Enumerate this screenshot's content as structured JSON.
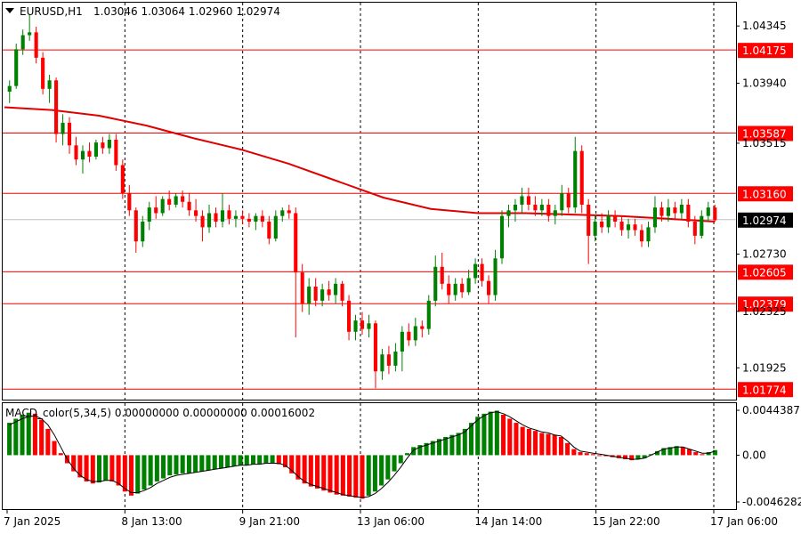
{
  "header": {
    "symbol": "EURUSD,H1",
    "ohlc": "1.03046 1.03064 1.02960 1.02974",
    "indicator": "MACD_color(5,34,5) 0.00000000 0.00000000 0.00016002"
  },
  "colors": {
    "bull": "#008000",
    "bear": "#ff0000",
    "ma": "#e00000",
    "level": "#ff0000",
    "price_tag": "#000000",
    "grid": "#000000",
    "signal": "#000000"
  },
  "chart_data": {
    "type": "candlestick",
    "price_axis": {
      "ticks": [
        "1.04345",
        "1.03940",
        "1.03515",
        "1.02730",
        "1.02325",
        "1.01925"
      ],
      "ylim": [
        1.017,
        1.0451
      ]
    },
    "level_lines": [
      "1.04175",
      "1.03587",
      "1.03160",
      "1.02605",
      "1.02379",
      "1.01774"
    ],
    "current_price": "1.02974",
    "x_labels": [
      "7 Jan 2025",
      "8 Jan 13:00",
      "9 Jan 21:00",
      "13 Jan 06:00",
      "14 Jan 14:00",
      "15 Jan 22:00",
      "17 Jan 06:00"
    ],
    "ma_points": [
      1.0377,
      1.0375,
      1.0371,
      1.0364,
      1.0355,
      1.0347,
      1.0337,
      1.0325,
      1.0313,
      1.0305,
      1.0302,
      1.0302,
      1.0301,
      1.03,
      1.0298,
      1.0296
    ],
    "candles": [
      {
        "o": 1.0388,
        "h": 1.0396,
        "l": 1.038,
        "c": 1.0392
      },
      {
        "o": 1.0392,
        "h": 1.0422,
        "l": 1.039,
        "c": 1.0418
      },
      {
        "o": 1.0418,
        "h": 1.0432,
        "l": 1.0414,
        "c": 1.0428
      },
      {
        "o": 1.0428,
        "h": 1.0443,
        "l": 1.0424,
        "c": 1.043
      },
      {
        "o": 1.043,
        "h": 1.0434,
        "l": 1.0408,
        "c": 1.0412
      },
      {
        "o": 1.0412,
        "h": 1.0416,
        "l": 1.0386,
        "c": 1.039
      },
      {
        "o": 1.039,
        "h": 1.04,
        "l": 1.038,
        "c": 1.0396
      },
      {
        "o": 1.0396,
        "h": 1.0398,
        "l": 1.0352,
        "c": 1.0358
      },
      {
        "o": 1.0358,
        "h": 1.0372,
        "l": 1.035,
        "c": 1.0366
      },
      {
        "o": 1.0366,
        "h": 1.037,
        "l": 1.0344,
        "c": 1.035
      },
      {
        "o": 1.035,
        "h": 1.0356,
        "l": 1.0336,
        "c": 1.034
      },
      {
        "o": 1.034,
        "h": 1.035,
        "l": 1.033,
        "c": 1.0346
      },
      {
        "o": 1.0346,
        "h": 1.0352,
        "l": 1.0338,
        "c": 1.0342
      },
      {
        "o": 1.0342,
        "h": 1.0354,
        "l": 1.034,
        "c": 1.0352
      },
      {
        "o": 1.0352,
        "h": 1.0356,
        "l": 1.0344,
        "c": 1.0348
      },
      {
        "o": 1.0348,
        "h": 1.0358,
        "l": 1.0344,
        "c": 1.0354
      },
      {
        "o": 1.0354,
        "h": 1.0358,
        "l": 1.0332,
        "c": 1.0336
      },
      {
        "o": 1.0336,
        "h": 1.034,
        "l": 1.0312,
        "c": 1.0316
      },
      {
        "o": 1.0316,
        "h": 1.0322,
        "l": 1.03,
        "c": 1.0304
      },
      {
        "o": 1.0304,
        "h": 1.0306,
        "l": 1.0274,
        "c": 1.0282
      },
      {
        "o": 1.0282,
        "h": 1.03,
        "l": 1.0278,
        "c": 1.0296
      },
      {
        "o": 1.0296,
        "h": 1.031,
        "l": 1.029,
        "c": 1.0306
      },
      {
        "o": 1.0306,
        "h": 1.0314,
        "l": 1.0298,
        "c": 1.0302
      },
      {
        "o": 1.0302,
        "h": 1.0314,
        "l": 1.03,
        "c": 1.0312
      },
      {
        "o": 1.0312,
        "h": 1.0318,
        "l": 1.0304,
        "c": 1.0308
      },
      {
        "o": 1.0308,
        "h": 1.0316,
        "l": 1.0306,
        "c": 1.0314
      },
      {
        "o": 1.0314,
        "h": 1.0318,
        "l": 1.0306,
        "c": 1.031
      },
      {
        "o": 1.031,
        "h": 1.0316,
        "l": 1.03,
        "c": 1.0304
      },
      {
        "o": 1.0304,
        "h": 1.0312,
        "l": 1.0296,
        "c": 1.03
      },
      {
        "o": 1.03,
        "h": 1.0304,
        "l": 1.0282,
        "c": 1.0292
      },
      {
        "o": 1.0292,
        "h": 1.0308,
        "l": 1.0288,
        "c": 1.0302
      },
      {
        "o": 1.0302,
        "h": 1.0306,
        "l": 1.0292,
        "c": 1.0296
      },
      {
        "o": 1.0296,
        "h": 1.0316,
        "l": 1.0292,
        "c": 1.0304
      },
      {
        "o": 1.0304,
        "h": 1.0308,
        "l": 1.0294,
        "c": 1.0298
      },
      {
        "o": 1.0298,
        "h": 1.0304,
        "l": 1.0292,
        "c": 1.03
      },
      {
        "o": 1.03,
        "h": 1.0304,
        "l": 1.0294,
        "c": 1.0298
      },
      {
        "o": 1.0298,
        "h": 1.0302,
        "l": 1.0292,
        "c": 1.0296
      },
      {
        "o": 1.0296,
        "h": 1.0302,
        "l": 1.029,
        "c": 1.03
      },
      {
        "o": 1.03,
        "h": 1.0304,
        "l": 1.0292,
        "c": 1.0296
      },
      {
        "o": 1.0296,
        "h": 1.03,
        "l": 1.028,
        "c": 1.0284
      },
      {
        "o": 1.0284,
        "h": 1.0304,
        "l": 1.0282,
        "c": 1.03
      },
      {
        "o": 1.03,
        "h": 1.0306,
        "l": 1.0296,
        "c": 1.0304
      },
      {
        "o": 1.0304,
        "h": 1.0308,
        "l": 1.0298,
        "c": 1.0302
      },
      {
        "o": 1.0302,
        "h": 1.0306,
        "l": 1.0214,
        "c": 1.026
      },
      {
        "o": 1.026,
        "h": 1.0266,
        "l": 1.0232,
        "c": 1.0238
      },
      {
        "o": 1.0238,
        "h": 1.0256,
        "l": 1.023,
        "c": 1.025
      },
      {
        "o": 1.025,
        "h": 1.0256,
        "l": 1.0236,
        "c": 1.024
      },
      {
        "o": 1.024,
        "h": 1.0252,
        "l": 1.0236,
        "c": 1.0248
      },
      {
        "o": 1.0248,
        "h": 1.0254,
        "l": 1.024,
        "c": 1.0244
      },
      {
        "o": 1.0244,
        "h": 1.0256,
        "l": 1.0238,
        "c": 1.0252
      },
      {
        "o": 1.0252,
        "h": 1.0254,
        "l": 1.0236,
        "c": 1.024
      },
      {
        "o": 1.024,
        "h": 1.0244,
        "l": 1.0212,
        "c": 1.0218
      },
      {
        "o": 1.0218,
        "h": 1.023,
        "l": 1.0212,
        "c": 1.0226
      },
      {
        "o": 1.0226,
        "h": 1.0232,
        "l": 1.0216,
        "c": 1.022
      },
      {
        "o": 1.022,
        "h": 1.023,
        "l": 1.0214,
        "c": 1.0224
      },
      {
        "o": 1.0224,
        "h": 1.0226,
        "l": 1.0178,
        "c": 1.019
      },
      {
        "o": 1.019,
        "h": 1.0206,
        "l": 1.0184,
        "c": 1.0202
      },
      {
        "o": 1.0202,
        "h": 1.0208,
        "l": 1.0188,
        "c": 1.0194
      },
      {
        "o": 1.0194,
        "h": 1.021,
        "l": 1.019,
        "c": 1.0204
      },
      {
        "o": 1.0204,
        "h": 1.0222,
        "l": 1.019,
        "c": 1.0218
      },
      {
        "o": 1.0218,
        "h": 1.0224,
        "l": 1.0208,
        "c": 1.0212
      },
      {
        "o": 1.0212,
        "h": 1.0228,
        "l": 1.0208,
        "c": 1.0222
      },
      {
        "o": 1.0222,
        "h": 1.0226,
        "l": 1.0214,
        "c": 1.022
      },
      {
        "o": 1.022,
        "h": 1.0244,
        "l": 1.0216,
        "c": 1.024
      },
      {
        "o": 1.024,
        "h": 1.0272,
        "l": 1.0236,
        "c": 1.0264
      },
      {
        "o": 1.0264,
        "h": 1.0274,
        "l": 1.0248,
        "c": 1.0252
      },
      {
        "o": 1.0252,
        "h": 1.0258,
        "l": 1.0238,
        "c": 1.0244
      },
      {
        "o": 1.0244,
        "h": 1.0256,
        "l": 1.024,
        "c": 1.0252
      },
      {
        "o": 1.0252,
        "h": 1.0256,
        "l": 1.0242,
        "c": 1.0246
      },
      {
        "o": 1.0246,
        "h": 1.0262,
        "l": 1.0244,
        "c": 1.0256
      },
      {
        "o": 1.0256,
        "h": 1.027,
        "l": 1.0252,
        "c": 1.0266
      },
      {
        "o": 1.0266,
        "h": 1.027,
        "l": 1.025,
        "c": 1.0254
      },
      {
        "o": 1.0254,
        "h": 1.0258,
        "l": 1.0238,
        "c": 1.0244
      },
      {
        "o": 1.0244,
        "h": 1.0276,
        "l": 1.024,
        "c": 1.027
      },
      {
        "o": 1.027,
        "h": 1.0304,
        "l": 1.0266,
        "c": 1.03
      },
      {
        "o": 1.03,
        "h": 1.0308,
        "l": 1.0292,
        "c": 1.0304
      },
      {
        "o": 1.0304,
        "h": 1.0312,
        "l": 1.0296,
        "c": 1.0308
      },
      {
        "o": 1.0308,
        "h": 1.032,
        "l": 1.0302,
        "c": 1.0314
      },
      {
        "o": 1.0314,
        "h": 1.032,
        "l": 1.0304,
        "c": 1.0308
      },
      {
        "o": 1.0308,
        "h": 1.0314,
        "l": 1.03,
        "c": 1.0304
      },
      {
        "o": 1.0304,
        "h": 1.0312,
        "l": 1.03,
        "c": 1.0308
      },
      {
        "o": 1.0308,
        "h": 1.0312,
        "l": 1.0296,
        "c": 1.03
      },
      {
        "o": 1.03,
        "h": 1.0308,
        "l": 1.0294,
        "c": 1.0304
      },
      {
        "o": 1.0304,
        "h": 1.0322,
        "l": 1.03,
        "c": 1.0316
      },
      {
        "o": 1.0316,
        "h": 1.032,
        "l": 1.0302,
        "c": 1.0306
      },
      {
        "o": 1.0306,
        "h": 1.0356,
        "l": 1.0302,
        "c": 1.0346
      },
      {
        "o": 1.0346,
        "h": 1.035,
        "l": 1.0302,
        "c": 1.0308
      },
      {
        "o": 1.0308,
        "h": 1.0312,
        "l": 1.0266,
        "c": 1.0286
      },
      {
        "o": 1.0286,
        "h": 1.03,
        "l": 1.0282,
        "c": 1.0296
      },
      {
        "o": 1.0296,
        "h": 1.0302,
        "l": 1.0288,
        "c": 1.0292
      },
      {
        "o": 1.0292,
        "h": 1.0304,
        "l": 1.0288,
        "c": 1.03
      },
      {
        "o": 1.03,
        "h": 1.0304,
        "l": 1.0292,
        "c": 1.0296
      },
      {
        "o": 1.0296,
        "h": 1.03,
        "l": 1.0286,
        "c": 1.029
      },
      {
        "o": 1.029,
        "h": 1.0298,
        "l": 1.0284,
        "c": 1.0294
      },
      {
        "o": 1.0294,
        "h": 1.0298,
        "l": 1.0286,
        "c": 1.029
      },
      {
        "o": 1.029,
        "h": 1.0294,
        "l": 1.0278,
        "c": 1.0282
      },
      {
        "o": 1.0282,
        "h": 1.0296,
        "l": 1.0278,
        "c": 1.0292
      },
      {
        "o": 1.0292,
        "h": 1.0314,
        "l": 1.0288,
        "c": 1.0306
      },
      {
        "o": 1.0306,
        "h": 1.031,
        "l": 1.0296,
        "c": 1.03
      },
      {
        "o": 1.03,
        "h": 1.0312,
        "l": 1.0296,
        "c": 1.0306
      },
      {
        "o": 1.0306,
        "h": 1.031,
        "l": 1.0298,
        "c": 1.0302
      },
      {
        "o": 1.0302,
        "h": 1.0312,
        "l": 1.0298,
        "c": 1.0308
      },
      {
        "o": 1.0308,
        "h": 1.0312,
        "l": 1.0292,
        "c": 1.0296
      },
      {
        "o": 1.0296,
        "h": 1.03,
        "l": 1.028,
        "c": 1.0286
      },
      {
        "o": 1.0286,
        "h": 1.0304,
        "l": 1.0284,
        "c": 1.03
      },
      {
        "o": 1.03,
        "h": 1.031,
        "l": 1.0296,
        "c": 1.0306
      },
      {
        "o": 1.0306,
        "h": 1.0308,
        "l": 1.0296,
        "c": 1.0297
      }
    ],
    "macd": {
      "ylim": [
        -0.0046282,
        0.0044387
      ],
      "ticks": [
        "0.0044387",
        "0.00",
        "-0.0046282"
      ],
      "histogram": [
        0.0032,
        0.0036,
        0.004,
        0.0042,
        0.0041,
        0.0035,
        0.0026,
        0.0014,
        0.0002,
        -0.0008,
        -0.0016,
        -0.0022,
        -0.0026,
        -0.0028,
        -0.0027,
        -0.0025,
        -0.0026,
        -0.003,
        -0.0036,
        -0.004,
        -0.0038,
        -0.0034,
        -0.003,
        -0.0026,
        -0.0023,
        -0.002,
        -0.0019,
        -0.0018,
        -0.0018,
        -0.0017,
        -0.0016,
        -0.0015,
        -0.0014,
        -0.0013,
        -0.0012,
        -0.0011,
        -0.001,
        -0.001,
        -0.0009,
        -0.0009,
        -0.0008,
        -0.0008,
        -0.0009,
        -0.0012,
        -0.0018,
        -0.0024,
        -0.0028,
        -0.0031,
        -0.0033,
        -0.0035,
        -0.0037,
        -0.0039,
        -0.004,
        -0.0041,
        -0.0042,
        -0.0043,
        -0.004,
        -0.0036,
        -0.003,
        -0.0024,
        -0.0016,
        -0.0008,
        0.0002,
        0.0008,
        0.001,
        0.0012,
        0.0014,
        0.0016,
        0.0018,
        0.002,
        0.0022,
        0.0026,
        0.0032,
        0.0038,
        0.0041,
        0.0043,
        0.0044,
        0.004,
        0.0036,
        0.0032,
        0.0028,
        0.0026,
        0.0024,
        0.0022,
        0.0021,
        0.002,
        0.0018,
        0.0012,
        0.0006,
        0.0003,
        0.0002,
        0.0001,
        0.0,
        -0.0001,
        -0.0002,
        -0.0003,
        -0.0004,
        -0.0005,
        -0.0004,
        -0.0003,
        0.0001,
        0.0004,
        0.0007,
        0.0008,
        0.0009,
        0.0008,
        0.0006,
        0.0003,
        0.0001,
        0.0003,
        0.0005
      ],
      "signal": [
        0.003,
        0.0033,
        0.0036,
        0.0038,
        0.0039,
        0.0036,
        0.003,
        0.002,
        0.0008,
        -0.0004,
        -0.0013,
        -0.002,
        -0.0024,
        -0.0026,
        -0.0026,
        -0.0025,
        -0.0025,
        -0.0028,
        -0.0033,
        -0.0037,
        -0.0037,
        -0.0035,
        -0.0032,
        -0.0028,
        -0.0025,
        -0.0022,
        -0.002,
        -0.0019,
        -0.0018,
        -0.0017,
        -0.0016,
        -0.0015,
        -0.0014,
        -0.0013,
        -0.0012,
        -0.0011,
        -0.001,
        -0.001,
        -0.0009,
        -0.0009,
        -0.0008,
        -0.0008,
        -0.0008,
        -0.001,
        -0.0015,
        -0.0021,
        -0.0026,
        -0.0029,
        -0.0031,
        -0.0033,
        -0.0035,
        -0.0037,
        -0.0039,
        -0.004,
        -0.0041,
        -0.0042,
        -0.0041,
        -0.0038,
        -0.0033,
        -0.0027,
        -0.002,
        -0.0012,
        -0.0003,
        0.0005,
        0.0008,
        0.001,
        0.0012,
        0.0014,
        0.0016,
        0.0018,
        0.002,
        0.0023,
        0.0029,
        0.0035,
        0.0039,
        0.0042,
        0.0043,
        0.0041,
        0.0038,
        0.0034,
        0.003,
        0.0027,
        0.0025,
        0.0023,
        0.0022,
        0.002,
        0.0019,
        0.0014,
        0.0008,
        0.0004,
        0.0003,
        0.0002,
        0.0001,
        0.0,
        -0.0001,
        -0.0002,
        -0.0003,
        -0.0004,
        -0.0004,
        -0.0003,
        0.0,
        0.0003,
        0.0006,
        0.0007,
        0.0008,
        0.0008,
        0.0006,
        0.0004,
        0.0002,
        0.0002,
        0.0004
      ]
    }
  }
}
